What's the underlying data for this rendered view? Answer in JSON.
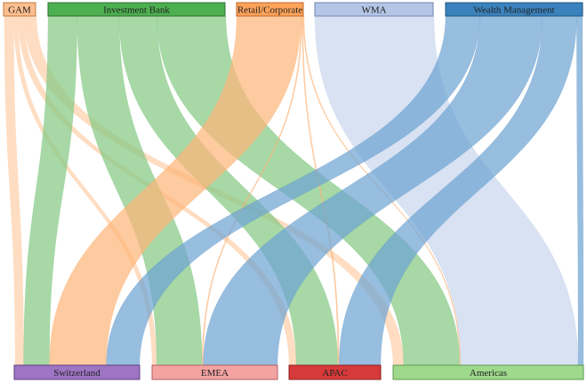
{
  "sources": [
    {
      "id": "gam",
      "label": "GAM",
      "color": "#fdbf8f",
      "stroke": "#c07a3e",
      "bar": "#fdd0ab"
    },
    {
      "id": "ib",
      "label": "Investment Bank",
      "color": "#4caf50",
      "stroke": "#2e6e31",
      "bar": "#85c984"
    },
    {
      "id": "rc",
      "label": "Retail/Corporate",
      "color": "#fda35a",
      "stroke": "#c0652a",
      "bar": "#fdb57a"
    },
    {
      "id": "wma",
      "label": "WMA",
      "color": "#b3c6e6",
      "stroke": "#6f86b0",
      "bar": "#cbd8ee"
    },
    {
      "id": "wm",
      "label": "Wealth Management",
      "color": "#3a82bd",
      "stroke": "#1f5580",
      "bar": "#6fa3d2"
    }
  ],
  "targets": [
    {
      "id": "ch",
      "label": "Switzerland",
      "color": "#9e74c4",
      "stroke": "#5e3f80"
    },
    {
      "id": "emea",
      "label": "EMEA",
      "color": "#f4a3a3",
      "stroke": "#b05f5f"
    },
    {
      "id": "apac",
      "label": "APAC",
      "color": "#d73a3a",
      "stroke": "#8c1f1f"
    },
    {
      "id": "am",
      "label": "Americas",
      "color": "#9ed98c",
      "stroke": "#5c9a4c"
    }
  ],
  "flows": [
    {
      "source": "gam",
      "target": "ch",
      "value": 9
    },
    {
      "source": "gam",
      "target": "emea",
      "value": 4
    },
    {
      "source": "gam",
      "target": "apac",
      "value": 6
    },
    {
      "source": "gam",
      "target": "am",
      "value": 12
    },
    {
      "source": "ib",
      "target": "ch",
      "value": 27
    },
    {
      "source": "ib",
      "target": "emea",
      "value": 39
    },
    {
      "source": "ib",
      "target": "apac",
      "value": 35
    },
    {
      "source": "ib",
      "target": "am",
      "value": 64
    },
    {
      "source": "rc",
      "target": "ch",
      "value": 60
    },
    {
      "source": "rc",
      "target": "emea",
      "value": 1
    },
    {
      "source": "rc",
      "target": "apac",
      "value": 1
    },
    {
      "source": "rc",
      "target": "am",
      "value": 1
    },
    {
      "source": "wma",
      "target": "am",
      "value": 134
    },
    {
      "source": "wm",
      "target": "ch",
      "value": 35
    },
    {
      "source": "wm",
      "target": "emea",
      "value": 64
    },
    {
      "source": "wm",
      "target": "apac",
      "value": 35
    },
    {
      "source": "wm",
      "target": "am",
      "value": 6
    }
  ]
}
